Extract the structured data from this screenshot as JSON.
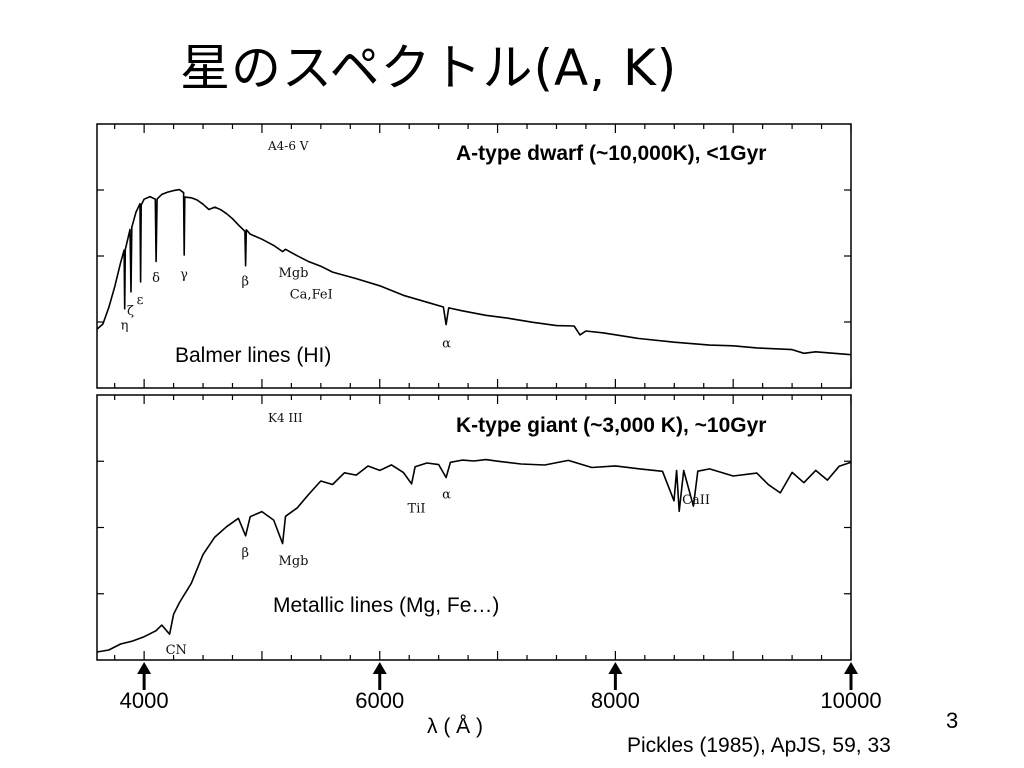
{
  "slide": {
    "title": "星のスペクトル(A, K)",
    "page_number": "3",
    "citation": "Pickles (1985), ApJS, 59, 33"
  },
  "chart_data": [
    {
      "type": "line",
      "panel": "top",
      "plot_tag": "A4-6 V",
      "header": "A-type dwarf (~10,000K), <1Gyr",
      "annotation": "Balmer lines (HI)",
      "xlabel": "λ ( Å )",
      "xlim": [
        3600,
        10000
      ],
      "x_ticks": [
        "4000",
        "6000",
        "8000",
        "10000"
      ],
      "line_labels": [
        {
          "text": "η",
          "x": 3835
        },
        {
          "text": "ζ",
          "x": 3889
        },
        {
          "text": "ε",
          "x": 3970
        },
        {
          "text": "δ",
          "x": 4102
        },
        {
          "text": "γ",
          "x": 4340
        },
        {
          "text": "β",
          "x": 4861
        },
        {
          "text": "Mgb",
          "x": 5175
        },
        {
          "text": "Ca,FeI",
          "x": 5270
        },
        {
          "text": "α",
          "x": 6563
        }
      ],
      "series": [
        {
          "x": [
            3600,
            3650,
            3700,
            3750,
            3800,
            3830,
            3835,
            3840,
            3880,
            3889,
            3895,
            3930,
            3965,
            3970,
            3975,
            4000,
            4050,
            4095,
            4102,
            4110,
            4150,
            4200,
            4250,
            4300,
            4335,
            4340,
            4345,
            4400,
            4450,
            4500,
            4550,
            4600,
            4650,
            4700,
            4750,
            4800,
            4855,
            4861,
            4867,
            4900,
            5000,
            5100,
            5175,
            5200,
            5300,
            5400,
            5500,
            5600,
            5800,
            6000,
            6200,
            6400,
            6540,
            6563,
            6585,
            6700,
            6900,
            7100,
            7300,
            7500,
            7650,
            7700,
            7750,
            7900,
            8200,
            8500,
            8800,
            9000,
            9200,
            9500,
            9600,
            9700,
            10000
          ],
          "y": [
            0.18,
            0.22,
            0.3,
            0.42,
            0.55,
            0.62,
            0.3,
            0.62,
            0.72,
            0.38,
            0.74,
            0.82,
            0.86,
            0.44,
            0.86,
            0.9,
            0.92,
            0.9,
            0.56,
            0.9,
            0.93,
            0.94,
            0.95,
            0.94,
            0.92,
            0.58,
            0.9,
            0.89,
            0.88,
            0.86,
            0.85,
            0.86,
            0.84,
            0.82,
            0.79,
            0.76,
            0.73,
            0.54,
            0.72,
            0.7,
            0.67,
            0.64,
            0.6,
            0.61,
            0.58,
            0.56,
            0.53,
            0.5,
            0.46,
            0.42,
            0.37,
            0.33,
            0.3,
            0.2,
            0.29,
            0.28,
            0.25,
            0.23,
            0.21,
            0.19,
            0.2,
            0.15,
            0.18,
            0.16,
            0.13,
            0.11,
            0.1,
            0.08,
            0.07,
            0.06,
            0.04,
            0.05,
            0.03
          ]
        }
      ]
    },
    {
      "type": "line",
      "panel": "bottom",
      "plot_tag": "K4 III",
      "header": "K-type giant (~3,000 K), ~10Gyr",
      "annotation": "Metallic lines (Mg, Fe…)",
      "xlabel": "λ ( Å )",
      "xlim": [
        3600,
        10000
      ],
      "x_ticks": [
        "4000",
        "6000",
        "8000",
        "10000"
      ],
      "line_labels": [
        {
          "text": "CN",
          "x": 4216
        },
        {
          "text": "β",
          "x": 4861
        },
        {
          "text": "Mgb",
          "x": 5175
        },
        {
          "text": "TiI",
          "x": 6270
        },
        {
          "text": "α",
          "x": 6563
        },
        {
          "text": "CaII",
          "x": 8600
        }
      ],
      "series": [
        {
          "x": [
            3600,
            3700,
            3800,
            3900,
            4000,
            4100,
            4150,
            4216,
            4250,
            4300,
            4400,
            4500,
            4600,
            4700,
            4800,
            4861,
            4900,
            5000,
            5100,
            5175,
            5200,
            5300,
            5400,
            5500,
            5600,
            5700,
            5800,
            5900,
            6000,
            6100,
            6200,
            6270,
            6300,
            6400,
            6500,
            6563,
            6600,
            6700,
            6800,
            6900,
            7000,
            7200,
            7400,
            7600,
            7800,
            8000,
            8200,
            8400,
            8498,
            8520,
            8542,
            8580,
            8662,
            8700,
            8800,
            9000,
            9200,
            9300,
            9400,
            9500,
            9600,
            9700,
            9800,
            9900,
            10000
          ],
          "y": [
            0.0,
            0.02,
            0.04,
            0.06,
            0.08,
            0.11,
            0.14,
            0.09,
            0.18,
            0.24,
            0.34,
            0.48,
            0.56,
            0.62,
            0.66,
            0.58,
            0.68,
            0.7,
            0.66,
            0.54,
            0.68,
            0.72,
            0.79,
            0.84,
            0.82,
            0.88,
            0.87,
            0.91,
            0.89,
            0.92,
            0.9,
            0.84,
            0.92,
            0.94,
            0.93,
            0.87,
            0.95,
            0.96,
            0.94,
            0.95,
            0.94,
            0.93,
            0.92,
            0.94,
            0.91,
            0.93,
            0.91,
            0.9,
            0.75,
            0.9,
            0.7,
            0.9,
            0.72,
            0.89,
            0.9,
            0.87,
            0.88,
            0.82,
            0.78,
            0.88,
            0.84,
            0.9,
            0.86,
            0.92,
            0.94
          ]
        }
      ]
    }
  ]
}
